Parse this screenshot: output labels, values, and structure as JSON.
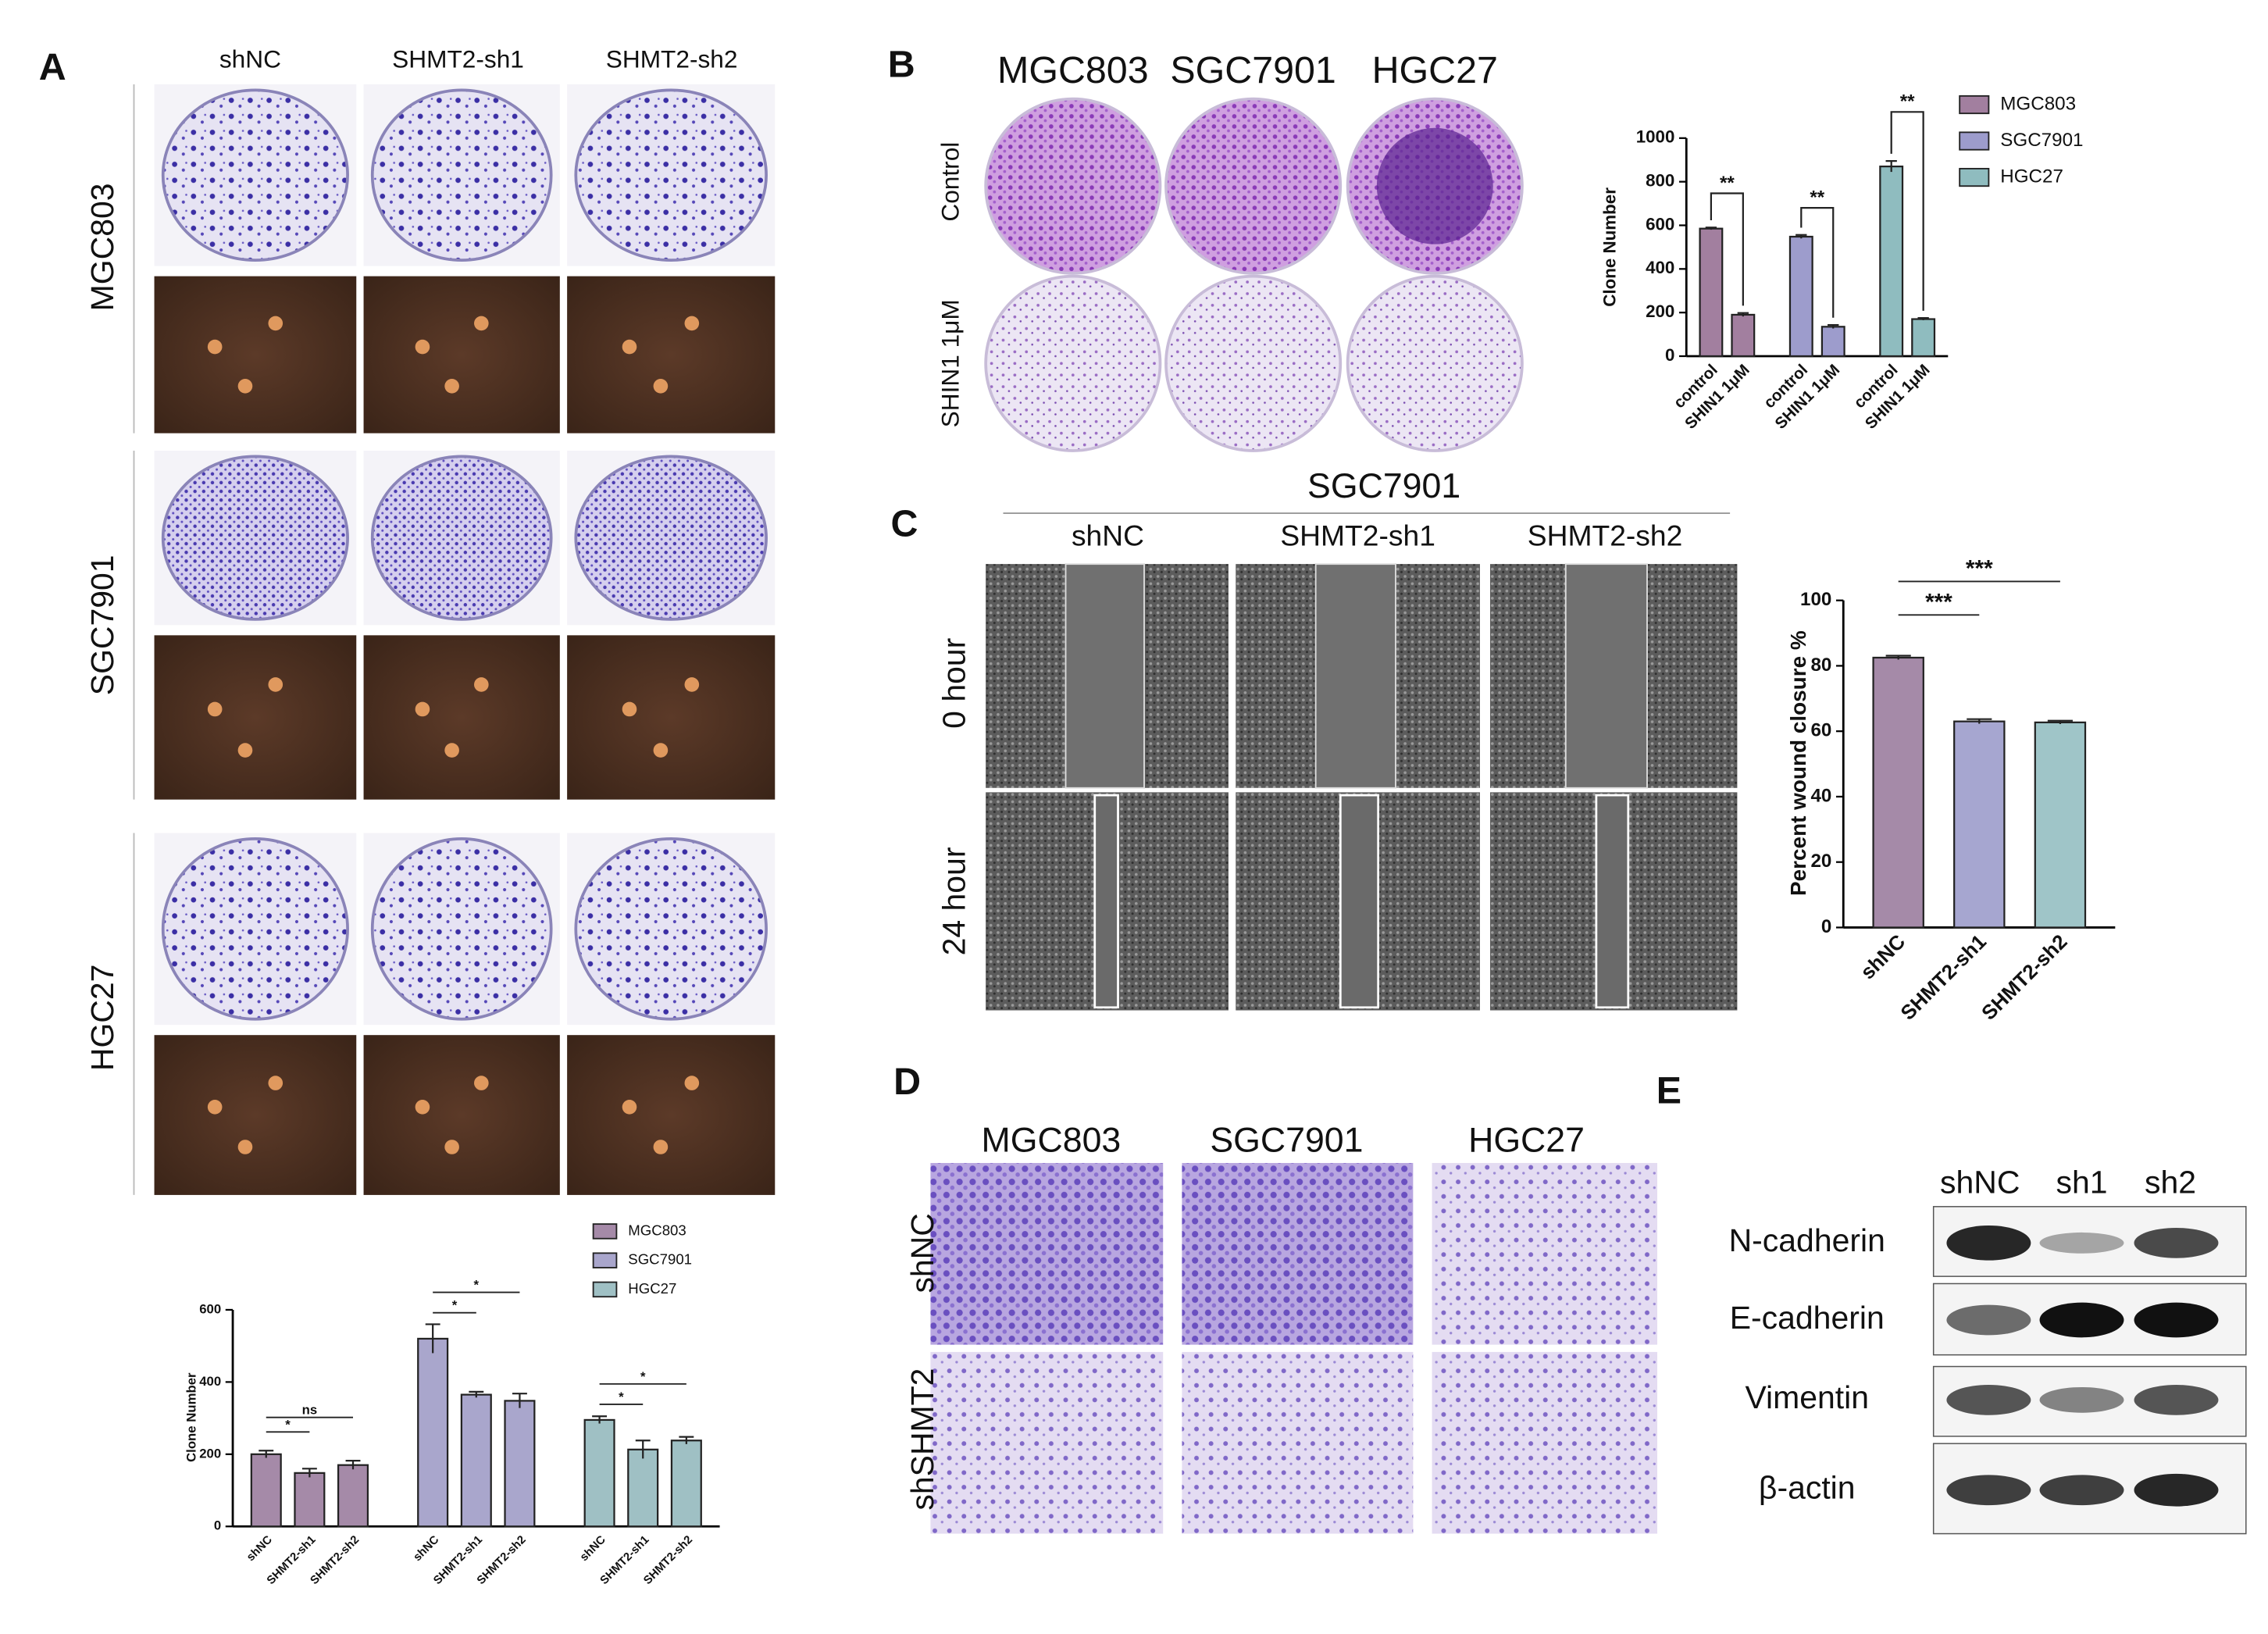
{
  "figure": {
    "panel_labels": [
      "A",
      "B",
      "C",
      "D",
      "E"
    ],
    "A": {
      "columns": [
        "shNC",
        "SHMT2-sh1",
        "SHMT2-sh2"
      ],
      "rows": [
        "MGC803",
        "SGC7901",
        "HGC27"
      ]
    },
    "B": {
      "columns": [
        "MGC803",
        "SGC7901",
        "HGC27"
      ],
      "rows": [
        "Control",
        "SHIN1 1μM"
      ]
    },
    "C": {
      "title": "SGC7901",
      "columns": [
        "shNC",
        "SHMT2-sh1",
        "SHMT2-sh2"
      ],
      "rows": [
        "0 hour",
        "24 hour"
      ]
    },
    "D": {
      "columns": [
        "MGC803",
        "SGC7901",
        "HGC27"
      ],
      "rows": [
        "shNC",
        "shSHMT2"
      ]
    },
    "E": {
      "columns": [
        "shNC",
        "sh1",
        "sh2"
      ],
      "rows": [
        "N-cadherin",
        "E-cadherin",
        "Vimentin",
        "β-actin"
      ]
    }
  },
  "chart_data": [
    {
      "type": "bar",
      "ylabel": "Clone Number",
      "categories": [
        "shNC",
        "SHMT2-sh1",
        "SHMT2-sh2",
        "shNC",
        "SHMT2-sh1",
        "SHMT2-sh2",
        "shNC",
        "SHMT2-sh1",
        "SHMT2-sh2"
      ],
      "series": [
        {
          "name": "MGC803",
          "color": "#a58aa8",
          "values": [
            200,
            148,
            170,
            null,
            null,
            null,
            null,
            null,
            null
          ],
          "errors": [
            10,
            12,
            12,
            null,
            null,
            null,
            null,
            null,
            null
          ]
        },
        {
          "name": "SGC7901",
          "color": "#a9a6cc",
          "values": [
            null,
            null,
            null,
            520,
            365,
            348,
            null,
            null,
            null
          ],
          "errors": [
            null,
            null,
            null,
            40,
            8,
            20,
            null,
            null,
            null
          ]
        },
        {
          "name": "HGC27",
          "color": "#9fc0c4",
          "values": [
            null,
            null,
            null,
            null,
            null,
            null,
            295,
            213,
            238
          ],
          "errors": [
            null,
            null,
            null,
            null,
            null,
            null,
            10,
            25,
            10
          ]
        }
      ],
      "ylim": [
        0,
        600
      ],
      "yticks": [
        0,
        200,
        400,
        600
      ],
      "annotations": [
        "*",
        "ns",
        "*",
        "*",
        "*",
        "*"
      ]
    },
    {
      "type": "bar",
      "ylabel": "Clone Number",
      "categories": [
        "control",
        "SHIN1 1μM",
        "control",
        "SHIN1 1μM",
        "control",
        "SHIN1 1μM"
      ],
      "series": [
        {
          "name": "MGC803",
          "color": "#a27f9f",
          "values": [
            585,
            190,
            null,
            null,
            null,
            null
          ],
          "errors": [
            5,
            8,
            null,
            null,
            null,
            null
          ]
        },
        {
          "name": "SGC7901",
          "color": "#9d9ccc",
          "values": [
            null,
            null,
            548,
            135,
            null,
            null
          ],
          "errors": [
            null,
            null,
            8,
            8,
            null,
            null
          ]
        },
        {
          "name": "HGC27",
          "color": "#8fbcbf",
          "values": [
            null,
            null,
            null,
            null,
            870,
            170
          ],
          "errors": [
            null,
            null,
            null,
            null,
            25,
            5
          ]
        }
      ],
      "ylim": [
        0,
        1000
      ],
      "yticks": [
        0,
        200,
        400,
        600,
        800,
        1000
      ],
      "annotations": [
        "**",
        "**",
        "**"
      ]
    },
    {
      "type": "bar",
      "ylabel": "Percent wound closure %",
      "categories": [
        "shNC",
        "SHMT2-sh1",
        "SHMT2-sh2"
      ],
      "values": [
        82.5,
        63,
        62.7
      ],
      "errors": [
        0.6,
        0.7,
        0.5
      ],
      "colors": [
        "#a58aa8",
        "#a6a6d0",
        "#9fc5c8"
      ],
      "ylim": [
        0,
        100
      ],
      "yticks": [
        0,
        20,
        40,
        60,
        80,
        100
      ],
      "annotations": [
        "***",
        "***"
      ]
    }
  ]
}
